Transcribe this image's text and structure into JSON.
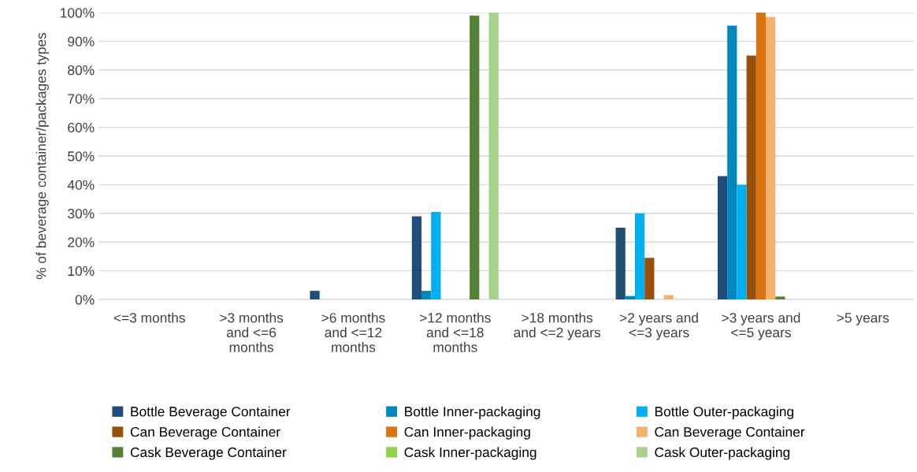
{
  "chart_data": {
    "type": "bar",
    "ylabel": "% of beverage container/packages types",
    "categories": [
      "<=3 months",
      ">3 months\nand <=6\nmonths",
      ">6 months\nand <=12\nmonths",
      ">12 months\nand <=18\nmonths",
      ">18 months\nand <=2 years",
      ">2 years and\n<=3 years",
      ">3 years and\n<=5 years",
      ">5 years"
    ],
    "series": [
      {
        "name": "Bottle Beverage Container",
        "color": "#1f4e79",
        "values": [
          0,
          0,
          3,
          29,
          0,
          25,
          43,
          0
        ]
      },
      {
        "name": "Bottle Inner-packaging",
        "color": "#0088bf",
        "values": [
          0,
          0,
          0,
          3,
          0,
          1.2,
          95.5,
          0
        ]
      },
      {
        "name": "Bottle Outer-packaging",
        "color": "#00b0f0",
        "values": [
          0,
          0,
          0,
          30.5,
          0,
          30,
          40,
          0
        ]
      },
      {
        "name": "Can Beverage Container",
        "color": "#974f0c",
        "values": [
          0,
          0,
          0,
          0,
          0,
          14.5,
          85,
          0
        ]
      },
      {
        "name": "Can Inner-packaging",
        "color": "#d97511",
        "values": [
          0,
          0,
          0,
          0,
          0,
          0,
          100,
          0
        ]
      },
      {
        "name": "Can Beverage Container",
        "color": "#f4b26f",
        "values": [
          0,
          0,
          0,
          0,
          0,
          1.5,
          98.5,
          0
        ]
      },
      {
        "name": "Cask Beverage Container",
        "color": "#548235",
        "values": [
          0,
          0,
          0,
          99,
          0,
          0,
          1,
          0
        ]
      },
      {
        "name": "Cask Inner-packaging",
        "color": "#92d050",
        "values": [
          0,
          0,
          0,
          0,
          0,
          0,
          0,
          0
        ]
      },
      {
        "name": "Cask Outer-packaging",
        "color": "#a9d18e",
        "values": [
          0,
          0,
          0,
          100,
          0,
          0,
          0,
          0
        ]
      }
    ],
    "ylim": [
      0,
      100
    ],
    "yticks": [
      {
        "value": 0,
        "label": "0%"
      },
      {
        "value": 10,
        "label": "10%"
      },
      {
        "value": 20,
        "label": "20%"
      },
      {
        "value": 30,
        "label": "30%"
      },
      {
        "value": 40,
        "label": "40%"
      },
      {
        "value": 50,
        "label": "50%"
      },
      {
        "value": 60,
        "label": "60%"
      },
      {
        "value": 70,
        "label": "70%"
      },
      {
        "value": 80,
        "label": "80%"
      },
      {
        "value": 90,
        "label": "90%"
      },
      {
        "value": 100,
        "label": "100%"
      }
    ],
    "grid": "y",
    "legend": "bottom"
  }
}
